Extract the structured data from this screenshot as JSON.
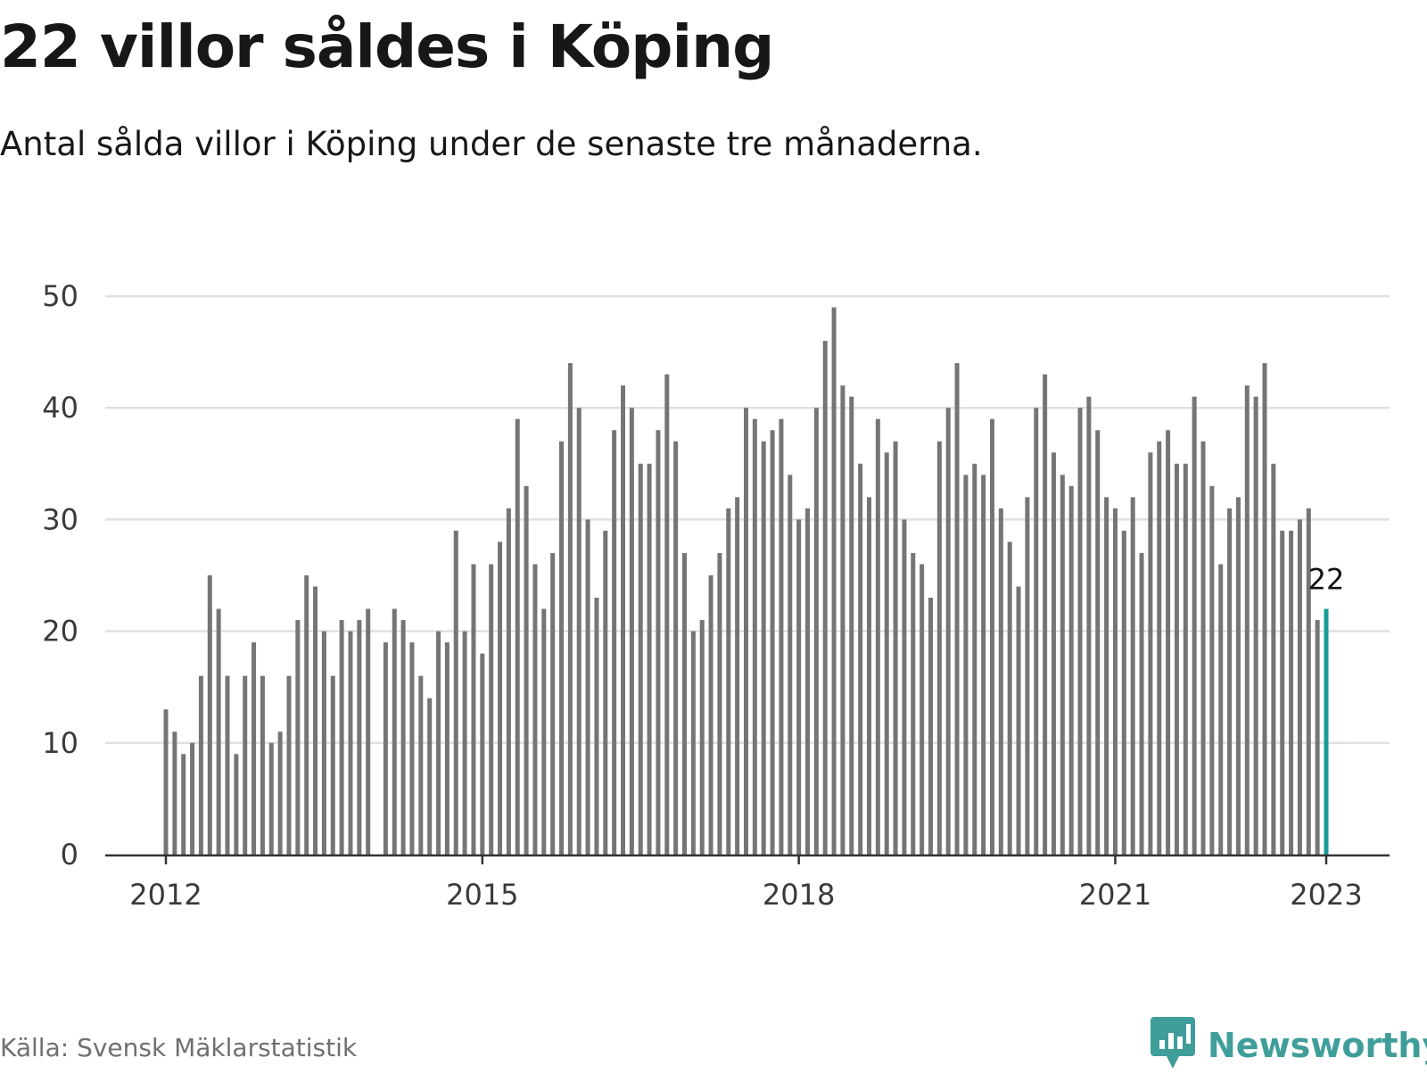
{
  "header": {
    "title": "22 villor såldes i Köping",
    "subtitle": "Antal sålda villor i Köping under de senaste tre månaderna."
  },
  "footer": {
    "source": "Källa: Svensk Mäklarstatistik",
    "brand": "Newsworthy",
    "brand_icon": "bar-chart-speech-bubble-icon"
  },
  "colors": {
    "bar": "#757575",
    "highlight": "#1a9c96",
    "grid": "#e0e0e0",
    "axis": "#333333",
    "brand": "#3f9e9a"
  },
  "chart_data": {
    "type": "bar",
    "title": "22 villor såldes i Köping",
    "subtitle": "Antal sålda villor i Köping under de senaste tre månaderna.",
    "xlabel": "",
    "ylabel": "",
    "ylim": [
      0,
      50
    ],
    "yticks": [
      0,
      10,
      20,
      30,
      40,
      50
    ],
    "x_start": "2012-01",
    "x_end": "2023-01",
    "xticks": [
      "2012",
      "2015",
      "2018",
      "2021",
      "2023"
    ],
    "grid": true,
    "highlight": {
      "x": "2023-01",
      "value": 22,
      "label": "22"
    },
    "series": [
      {
        "x": [
          "2012-01",
          "2012-02",
          "2012-03",
          "2012-04",
          "2012-05",
          "2012-06",
          "2012-07",
          "2012-08",
          "2012-09",
          "2012-10",
          "2012-11",
          "2012-12",
          "2013-01",
          "2013-02",
          "2013-03",
          "2013-04",
          "2013-05",
          "2013-06",
          "2013-07",
          "2013-08",
          "2013-09",
          "2013-10",
          "2013-11",
          "2013-12",
          "2014-01",
          "2014-02",
          "2014-03",
          "2014-04",
          "2014-05",
          "2014-06",
          "2014-07",
          "2014-08",
          "2014-09",
          "2014-10",
          "2014-11",
          "2014-12",
          "2015-01",
          "2015-02",
          "2015-03",
          "2015-04",
          "2015-05",
          "2015-06",
          "2015-07",
          "2015-08",
          "2015-09",
          "2015-10",
          "2015-11",
          "2015-12",
          "2016-01",
          "2016-02",
          "2016-03",
          "2016-04",
          "2016-05",
          "2016-06",
          "2016-07",
          "2016-08",
          "2016-09",
          "2016-10",
          "2016-11",
          "2016-12",
          "2017-01",
          "2017-02",
          "2017-03",
          "2017-04",
          "2017-05",
          "2017-06",
          "2017-07",
          "2017-08",
          "2017-09",
          "2017-10",
          "2017-11",
          "2017-12",
          "2018-01",
          "2018-02",
          "2018-03",
          "2018-04",
          "2018-05",
          "2018-06",
          "2018-07",
          "2018-08",
          "2018-09",
          "2018-10",
          "2018-11",
          "2018-12",
          "2019-01",
          "2019-02",
          "2019-03",
          "2019-04",
          "2019-05",
          "2019-06",
          "2019-07",
          "2019-08",
          "2019-09",
          "2019-10",
          "2019-11",
          "2019-12",
          "2020-01",
          "2020-02",
          "2020-03",
          "2020-04",
          "2020-05",
          "2020-06",
          "2020-07",
          "2020-08",
          "2020-09",
          "2020-10",
          "2020-11",
          "2020-12",
          "2021-01",
          "2021-02",
          "2021-03",
          "2021-04",
          "2021-05",
          "2021-06",
          "2021-07",
          "2021-08",
          "2021-09",
          "2021-10",
          "2021-11",
          "2021-12",
          "2022-01",
          "2022-02",
          "2022-03",
          "2022-04",
          "2022-05",
          "2022-06",
          "2022-07",
          "2022-08",
          "2022-09",
          "2022-10",
          "2022-11",
          "2022-12",
          "2023-01"
        ],
        "values": [
          13,
          11,
          9,
          10,
          16,
          25,
          22,
          16,
          9,
          16,
          19,
          16,
          10,
          11,
          16,
          21,
          25,
          24,
          20,
          16,
          21,
          20,
          21,
          22,
          0,
          19,
          22,
          21,
          19,
          16,
          14,
          20,
          19,
          29,
          20,
          26,
          18,
          26,
          28,
          31,
          39,
          33,
          26,
          22,
          27,
          37,
          44,
          40,
          30,
          23,
          29,
          38,
          42,
          40,
          35,
          35,
          38,
          43,
          37,
          27,
          20,
          21,
          25,
          27,
          31,
          32,
          40,
          39,
          37,
          38,
          39,
          34,
          30,
          31,
          40,
          46,
          49,
          42,
          41,
          35,
          32,
          39,
          36,
          37,
          30,
          27,
          26,
          23,
          37,
          40,
          44,
          34,
          35,
          34,
          39,
          31,
          28,
          24,
          32,
          40,
          43,
          36,
          34,
          33,
          40,
          41,
          38,
          32,
          31,
          29,
          32,
          27,
          36,
          37,
          38,
          35,
          35,
          41,
          37,
          33,
          26,
          31,
          32,
          42,
          41,
          44,
          35,
          29,
          29,
          30,
          31,
          21,
          22
        ]
      }
    ]
  }
}
